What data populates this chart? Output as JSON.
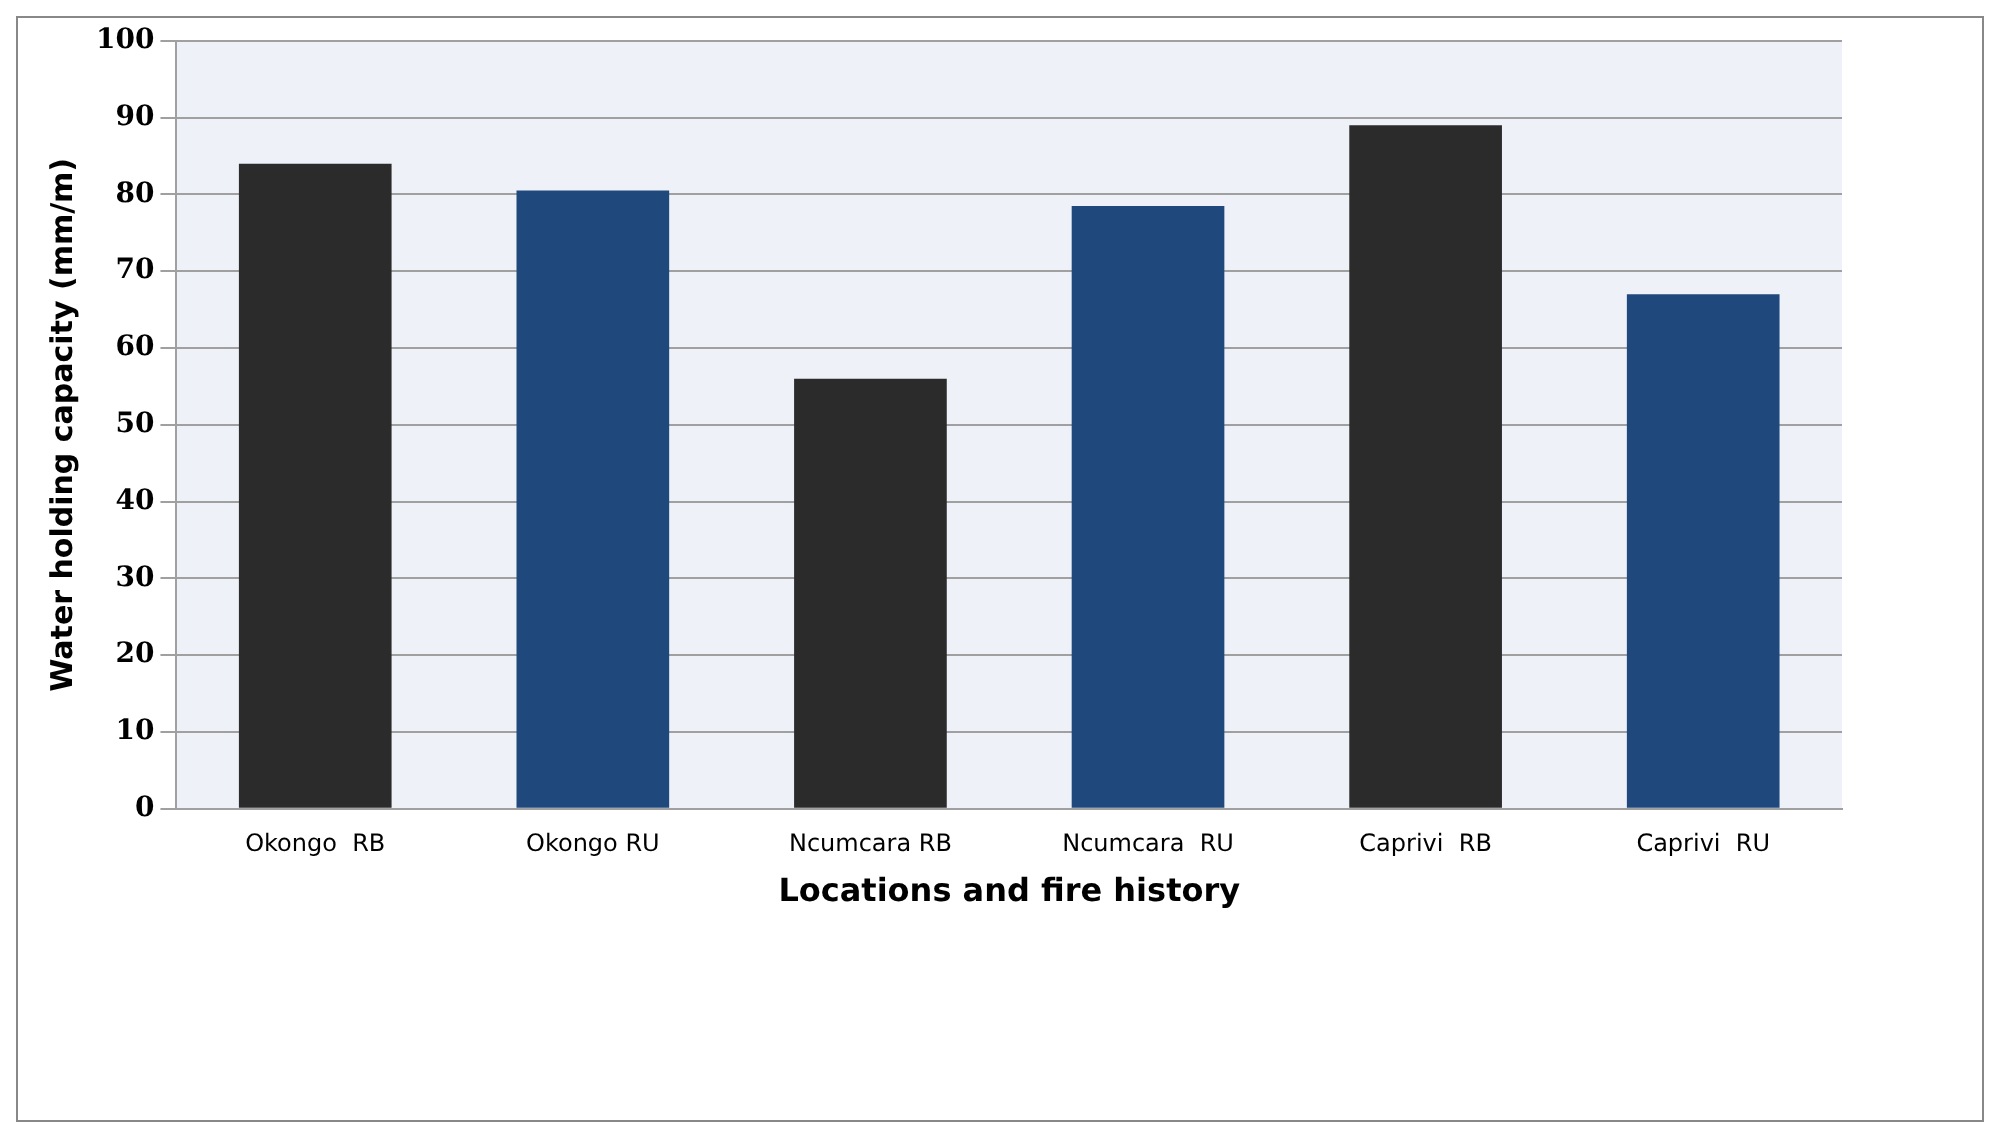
{
  "chart_data": {
    "type": "bar",
    "xlabel": "Locations and fire history",
    "ylabel": "Water holding capacity (mm/m)",
    "categories": [
      "Okongo  RB",
      "Okongo RU",
      "Ncumcara RB",
      "Ncumcara  RU",
      "Caprivi  RB",
      "Caprivi  RU"
    ],
    "values": [
      84,
      80.5,
      56,
      78.5,
      89,
      67
    ],
    "colors": [
      "#2b2b2b",
      "#1f497d",
      "#2b2b2b",
      "#1f497d",
      "#2b2b2b",
      "#1f497d"
    ],
    "ylim": [
      0,
      100
    ],
    "yticks": [
      0,
      10,
      20,
      30,
      40,
      50,
      60,
      70,
      80,
      90,
      100
    ],
    "grid": "y",
    "legend": false
  }
}
